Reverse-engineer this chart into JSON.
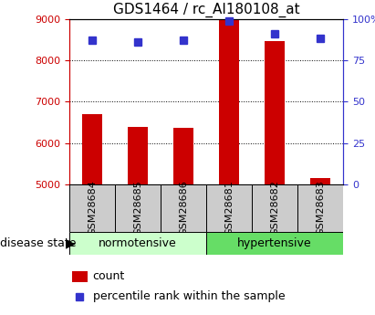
{
  "title": "GDS1464 / rc_AI180108_at",
  "samples": [
    "GSM28684",
    "GSM28685",
    "GSM28686",
    "GSM28681",
    "GSM28682",
    "GSM28683"
  ],
  "counts": [
    6700,
    6390,
    6360,
    9000,
    8460,
    5160
  ],
  "percentiles": [
    87,
    86,
    87,
    99,
    91,
    88
  ],
  "ylim_left": [
    5000,
    9000
  ],
  "ylim_right": [
    0,
    100
  ],
  "yticks_left": [
    5000,
    6000,
    7000,
    8000,
    9000
  ],
  "yticks_right": [
    0,
    25,
    50,
    75,
    100
  ],
  "bar_color": "#cc0000",
  "marker_color": "#3333cc",
  "bar_width": 0.45,
  "bg_sample_box": "#cccccc",
  "bg_norm": "#ccffcc",
  "bg_hyper": "#66dd66",
  "left_axis_color": "#cc0000",
  "right_axis_color": "#3333cc",
  "title_fontsize": 11,
  "tick_fontsize": 8,
  "legend_fontsize": 9,
  "group_label_fontsize": 9,
  "disease_state_fontsize": 9
}
